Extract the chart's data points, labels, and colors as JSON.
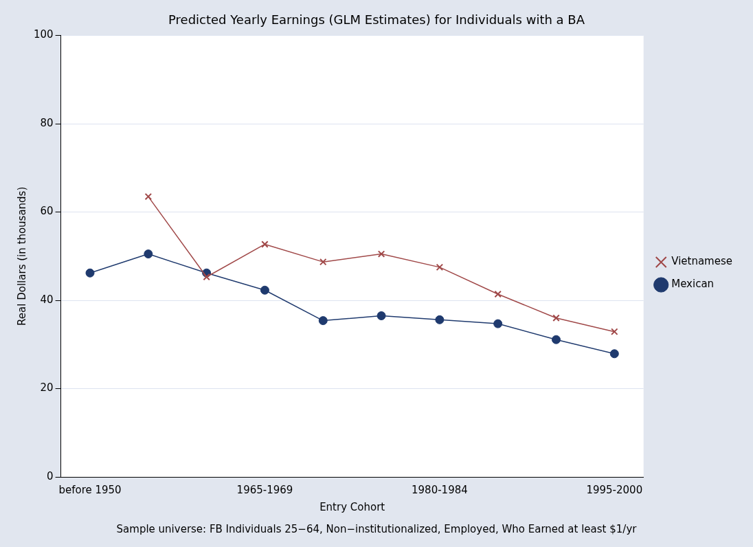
{
  "chart_data": {
    "type": "line",
    "title": "Predicted Yearly Earnings (GLM Estimates) for Individuals with a BA",
    "xlabel": "Entry Cohort",
    "ylabel": "Real Dollars (in thousands)",
    "annotations": [
      "Sample universe: FB Individuals 25−64, Non−institutionalized, Employed, Who Earned at least $1/yr"
    ],
    "categories": [
      "before 1950",
      null,
      null,
      "1965-1969",
      null,
      null,
      "1980-1984",
      null,
      null,
      "1995-2000"
    ],
    "series": [
      {
        "name": "Mexican",
        "color": "#1f3a6e",
        "marker": "circle",
        "values": [
          46.2,
          50.5,
          46.2,
          42.3,
          35.4,
          36.5,
          35.6,
          34.7,
          31.1,
          27.9
        ]
      },
      {
        "name": "Vietnamese",
        "color": "#a04848",
        "marker": "cross",
        "values": [
          null,
          63.5,
          45.3,
          52.7,
          48.7,
          50.5,
          47.5,
          41.4,
          36.0,
          32.9
        ]
      }
    ],
    "ylim": [
      0,
      100
    ],
    "yticks": [
      0,
      20,
      40,
      60,
      80,
      100
    ],
    "grid": "y",
    "legend": "right"
  }
}
